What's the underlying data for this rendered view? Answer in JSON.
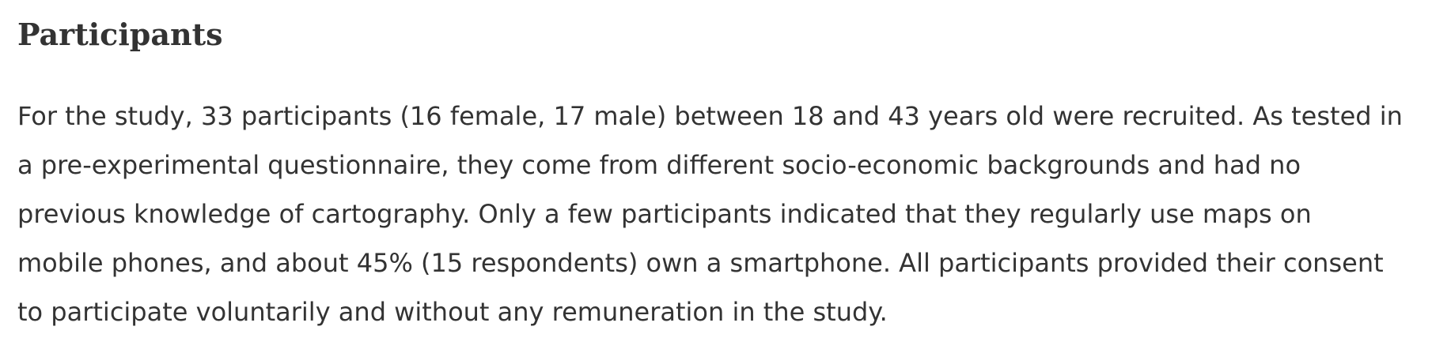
{
  "section": {
    "title": "Participants",
    "lines": [
      "For the study, 33 participants (16 female, 17 male) between 18 and 43 years old were recruited. As tested in",
      "a pre-experimental questionnaire, they come from different socio-economic backgrounds and had no",
      "previous knowledge of cartography. Only a few participants indicated that they regularly use maps on",
      "mobile phones, and about 45% (15 respondents) own a smartphone. All participants provided their consent",
      "to participate voluntarily and without any remuneration in the study."
    ]
  }
}
